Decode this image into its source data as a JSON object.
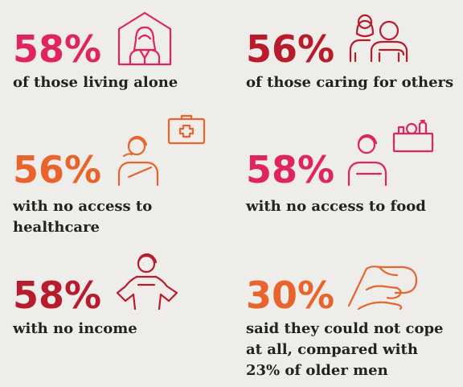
{
  "colors": {
    "pink": "#e0245e",
    "crimson": "#b81c2c",
    "orange": "#e8642c",
    "text": "#222222",
    "background": "#efedea"
  },
  "stats": [
    {
      "percent": "58%",
      "lines": [
        "of those living alone"
      ],
      "color": "#e0245e",
      "icon": "woman-in-house-icon"
    },
    {
      "percent": "56%",
      "lines": [
        "of those caring for others"
      ],
      "color": "#b81c2c",
      "icon": "carer-with-person-icon"
    },
    {
      "percent": "56%",
      "lines": [
        "with no access to",
        "healthcare"
      ],
      "color": "#e8642c",
      "icon": "woman-with-medical-kit-icon"
    },
    {
      "percent": "58%",
      "lines": [
        "with no access to food"
      ],
      "color": "#e0245e",
      "icon": "woman-with-food-basket-icon"
    },
    {
      "percent": "58%",
      "lines": [
        "with no income"
      ],
      "color": "#b81c2c",
      "icon": "woman-hands-on-hips-icon"
    },
    {
      "percent": "30%",
      "lines": [
        "said they could not cope",
        "at all, compared with",
        "23% of older men"
      ],
      "color": "#e8642c",
      "icon": "head-in-hand-icon"
    }
  ]
}
